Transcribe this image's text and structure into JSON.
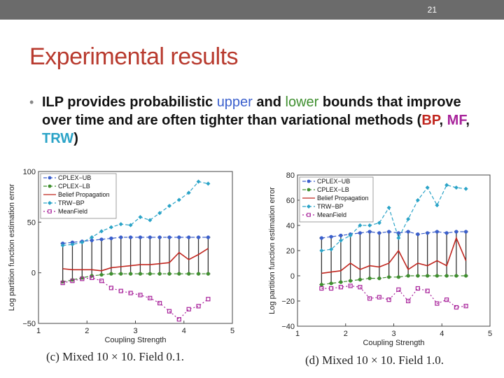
{
  "slide": {
    "number": "21",
    "title": "Experimental results"
  },
  "bullet": {
    "t1": "ILP provides probabilistic ",
    "upper": "upper",
    "t2": " and ",
    "lower": "lower",
    "t3": " bounds that improve over time and are often tighter than variational methods (",
    "bp": "BP",
    "sep1": ", ",
    "mf": "MF",
    "sep2": ", ",
    "trw": "TRW",
    "t4": ")"
  },
  "colors": {
    "title": "#b83a2e",
    "upper": "#3a5fcd",
    "lower": "#3f8f2f",
    "bp": "#c0261f",
    "mf": "#a8239b",
    "trw": "#2aa3c7"
  },
  "chart_data": [
    {
      "type": "line",
      "caption": "(c) Mixed 10 × 10. Field 0.1.",
      "xlabel": "Coupling Strength",
      "ylabel": "Log partition function estimation error",
      "xlim": [
        1,
        5
      ],
      "ylim": [
        -50,
        100
      ],
      "xticks": [
        1,
        2,
        3,
        4,
        5
      ],
      "yticks": [
        -50,
        0,
        50,
        100
      ],
      "legend_position": "top-left",
      "x": [
        1.5,
        1.7,
        1.9,
        2.1,
        2.3,
        2.5,
        2.7,
        2.9,
        3.1,
        3.3,
        3.5,
        3.7,
        3.9,
        4.1,
        4.3,
        4.5
      ],
      "series": [
        {
          "name": "CPLEX−UB",
          "color": "#3a5fcd",
          "values": [
            29,
            30,
            31,
            32,
            33,
            34,
            35,
            35,
            35,
            35,
            35,
            35,
            35,
            35,
            35,
            35
          ]
        },
        {
          "name": "CPLEX−LB",
          "color": "#3f8f2f",
          "values": [
            -9,
            -7,
            -5,
            -3,
            -2,
            -1,
            -1,
            -1,
            -1,
            -1,
            -1,
            -1,
            -1,
            -1,
            -1,
            -1
          ]
        },
        {
          "name": "Belief Propagation",
          "color": "#c0261f",
          "values": [
            4,
            3,
            3,
            3,
            2,
            5,
            6,
            7,
            8,
            8,
            9,
            10,
            20,
            13,
            18,
            24
          ]
        },
        {
          "name": "TRW−BP",
          "color": "#2aa3c7",
          "values": [
            27,
            28,
            30,
            35,
            41,
            45,
            48,
            47,
            55,
            52,
            59,
            66,
            72,
            79,
            90,
            88
          ]
        },
        {
          "name": "MeanField",
          "color": "#a8239b",
          "values": [
            -10,
            -8,
            -6,
            -5,
            -8,
            -15,
            -18,
            -20,
            -22,
            -25,
            -30,
            -38,
            -46,
            -36,
            -33,
            -26
          ]
        }
      ]
    },
    {
      "type": "line",
      "caption": "(d) Mixed 10 × 10. Field 1.0.",
      "xlabel": "Coupling Strength",
      "ylabel": "Log partition function estimation error",
      "xlim": [
        1,
        5
      ],
      "ylim": [
        -40,
        80
      ],
      "xticks": [
        1,
        2,
        3,
        4,
        5
      ],
      "yticks": [
        -40,
        -20,
        0,
        20,
        40,
        60,
        80
      ],
      "legend_position": "top-left",
      "x": [
        1.5,
        1.7,
        1.9,
        2.1,
        2.3,
        2.5,
        2.7,
        2.9,
        3.1,
        3.3,
        3.5,
        3.7,
        3.9,
        4.1,
        4.3,
        4.5
      ],
      "series": [
        {
          "name": "CPLEX−UB",
          "color": "#3a5fcd",
          "values": [
            30,
            31,
            32,
            33,
            34,
            35,
            34,
            35,
            34,
            35,
            33,
            34,
            35,
            34,
            35,
            35
          ]
        },
        {
          "name": "CPLEX−LB",
          "color": "#3f8f2f",
          "values": [
            -7,
            -6,
            -5,
            -4,
            -3,
            -2,
            -2,
            -1,
            -1,
            0,
            0,
            0,
            0,
            0,
            0,
            0
          ]
        },
        {
          "name": "Belief Propagation",
          "color": "#c0261f",
          "values": [
            2,
            3,
            4,
            10,
            5,
            8,
            7,
            10,
            20,
            5,
            10,
            8,
            12,
            8,
            30,
            12
          ]
        },
        {
          "name": "TRW−BP",
          "color": "#2aa3c7",
          "values": [
            20,
            21,
            28,
            32,
            40,
            40,
            42,
            54,
            30,
            45,
            60,
            70,
            56,
            72,
            70,
            69
          ]
        },
        {
          "name": "MeanField",
          "color": "#a8239b",
          "values": [
            -10,
            -10,
            -9,
            -8,
            -9,
            -18,
            -17,
            -19,
            -11,
            -20,
            -10,
            -12,
            -22,
            -19,
            -25,
            -24
          ]
        }
      ]
    }
  ]
}
